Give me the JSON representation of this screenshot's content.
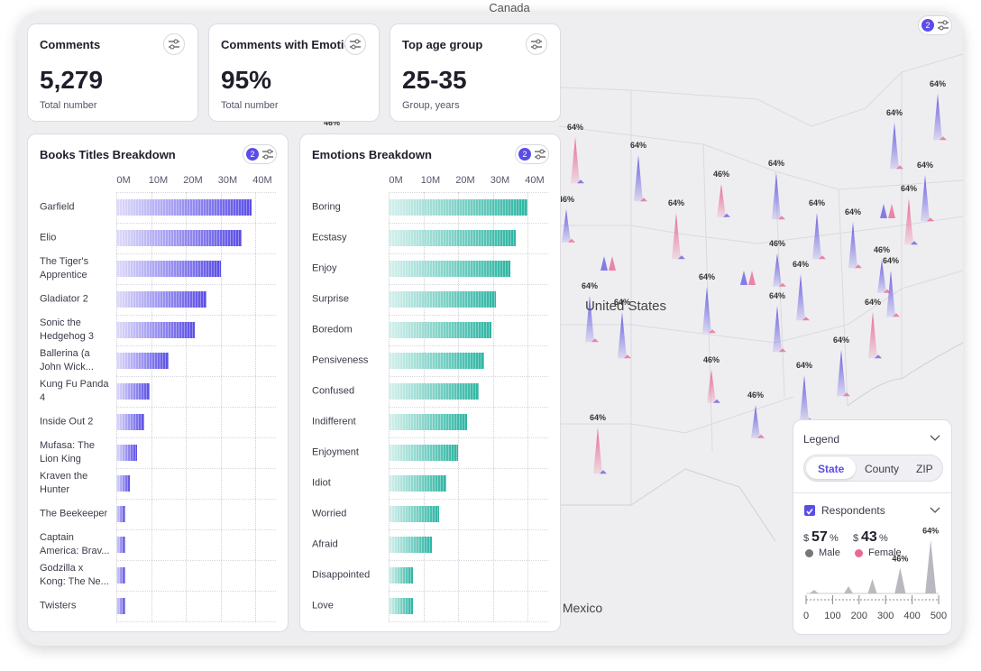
{
  "cards": [
    {
      "title": "Comments",
      "value": "5,279",
      "subtitle": "Total number"
    },
    {
      "title": "Comments with Emotions",
      "value": "95%",
      "subtitle": "Total number"
    },
    {
      "title": "Top age group",
      "value": "25-35",
      "subtitle": "Group, years"
    }
  ],
  "filters": {
    "books": "2",
    "emotions": "2",
    "map": "2"
  },
  "chart_data": [
    {
      "type": "bar",
      "orientation": "horizontal",
      "title": "Books Titles Breakdown",
      "color": "#5a4de6",
      "categories": [
        "Garfield",
        "Elio",
        "The Tiger's Apprentice",
        "Gladiator 2",
        "Sonic the Hedgehog 3",
        "Ballerina (a John Wick...",
        "Kung Fu Panda 4",
        "Inside Out 2",
        "Mufasa: The Lion King",
        "Kraven the Hunter",
        "The Beekeeper",
        "Captain America: Brav...",
        "Godzilla x Kong: The Ne...",
        "Twisters"
      ],
      "values": [
        39,
        36,
        30,
        26,
        22.5,
        15,
        9.5,
        8,
        6,
        4,
        2.5,
        2.5,
        2.5,
        2.5
      ],
      "xlim": [
        0,
        40
      ],
      "xticks": [
        {
          "value": 0,
          "label": "0M"
        },
        {
          "value": 10,
          "label": "10M"
        },
        {
          "value": 20,
          "label": "20M"
        },
        {
          "value": 30,
          "label": "30M"
        },
        {
          "value": 40,
          "label": "40M"
        }
      ],
      "grid": true
    },
    {
      "type": "bar",
      "orientation": "horizontal",
      "title": "Emotions Breakdown",
      "color": "#2db5a3",
      "categories": [
        "Boring",
        "Ecstasy",
        "Enjoy",
        "Surprise",
        "Boredom",
        "Pensiveness",
        "Confused",
        "Indifferent",
        "Enjoyment",
        "Idiot",
        "Worried",
        "Afraid",
        "Disappointed",
        "Love"
      ],
      "values": [
        40,
        36.5,
        35,
        31,
        29.5,
        27.5,
        26,
        22.5,
        20,
        16.5,
        14.5,
        12.5,
        7,
        7
      ],
      "xlim": [
        0,
        40
      ],
      "xticks": [
        {
          "value": 0,
          "label": "0M"
        },
        {
          "value": 10,
          "label": "10M"
        },
        {
          "value": 20,
          "label": "20M"
        },
        {
          "value": 30,
          "label": "30M"
        },
        {
          "value": 40,
          "label": "40M"
        }
      ],
      "grid": true
    }
  ],
  "map": {
    "labels": [
      "Canada",
      "United States",
      "Mexico"
    ],
    "spikes": [
      {
        "value": 64,
        "label": "64%"
      },
      {
        "value": 64,
        "label": "64%"
      },
      {
        "value": 64,
        "label": "64%"
      },
      {
        "value": 64,
        "label": "64%"
      },
      {
        "value": 64,
        "label": "64%"
      },
      {
        "value": 64,
        "label": "64%"
      },
      {
        "value": 46,
        "label": "46%"
      },
      {
        "value": 64,
        "label": "64%"
      },
      {
        "value": 64,
        "label": "64%"
      },
      {
        "value": 64,
        "label": "64%"
      },
      {
        "value": 64,
        "label": "64%"
      },
      {
        "value": 46,
        "label": "46%"
      },
      {
        "value": 46,
        "label": "46%"
      },
      {
        "value": 64,
        "label": "64%"
      },
      {
        "value": 46,
        "label": "46%"
      },
      {
        "value": 64,
        "label": "64%"
      },
      {
        "value": 64,
        "label": "64%"
      },
      {
        "value": 64,
        "label": "64%"
      },
      {
        "value": 64,
        "label": "64%"
      },
      {
        "value": 64,
        "label": "64%"
      },
      {
        "value": 64,
        "label": "64%"
      },
      {
        "value": 64,
        "label": "64%"
      },
      {
        "value": 64,
        "label": "64%"
      },
      {
        "value": 46,
        "label": "46%"
      },
      {
        "value": 46,
        "label": "46%"
      },
      {
        "value": 64,
        "label": "64%"
      },
      {
        "value": 46,
        "label": "46%"
      }
    ]
  },
  "legend": {
    "title": "Legend",
    "tabs": [
      "State",
      "County",
      "ZIP"
    ],
    "layer": "Respondents",
    "groups": [
      {
        "prefix": "$",
        "value": "57",
        "suffix": "%",
        "name": "Male"
      },
      {
        "prefix": "$",
        "value": "43",
        "suffix": "%",
        "name": "Female"
      }
    ],
    "chart": {
      "xlim": [
        0,
        500
      ],
      "xticks": [
        0,
        100,
        200,
        300,
        400,
        500
      ],
      "peaks": [
        {
          "value": 46,
          "label": "46%"
        },
        {
          "value": 64,
          "label": "64%"
        }
      ]
    }
  }
}
